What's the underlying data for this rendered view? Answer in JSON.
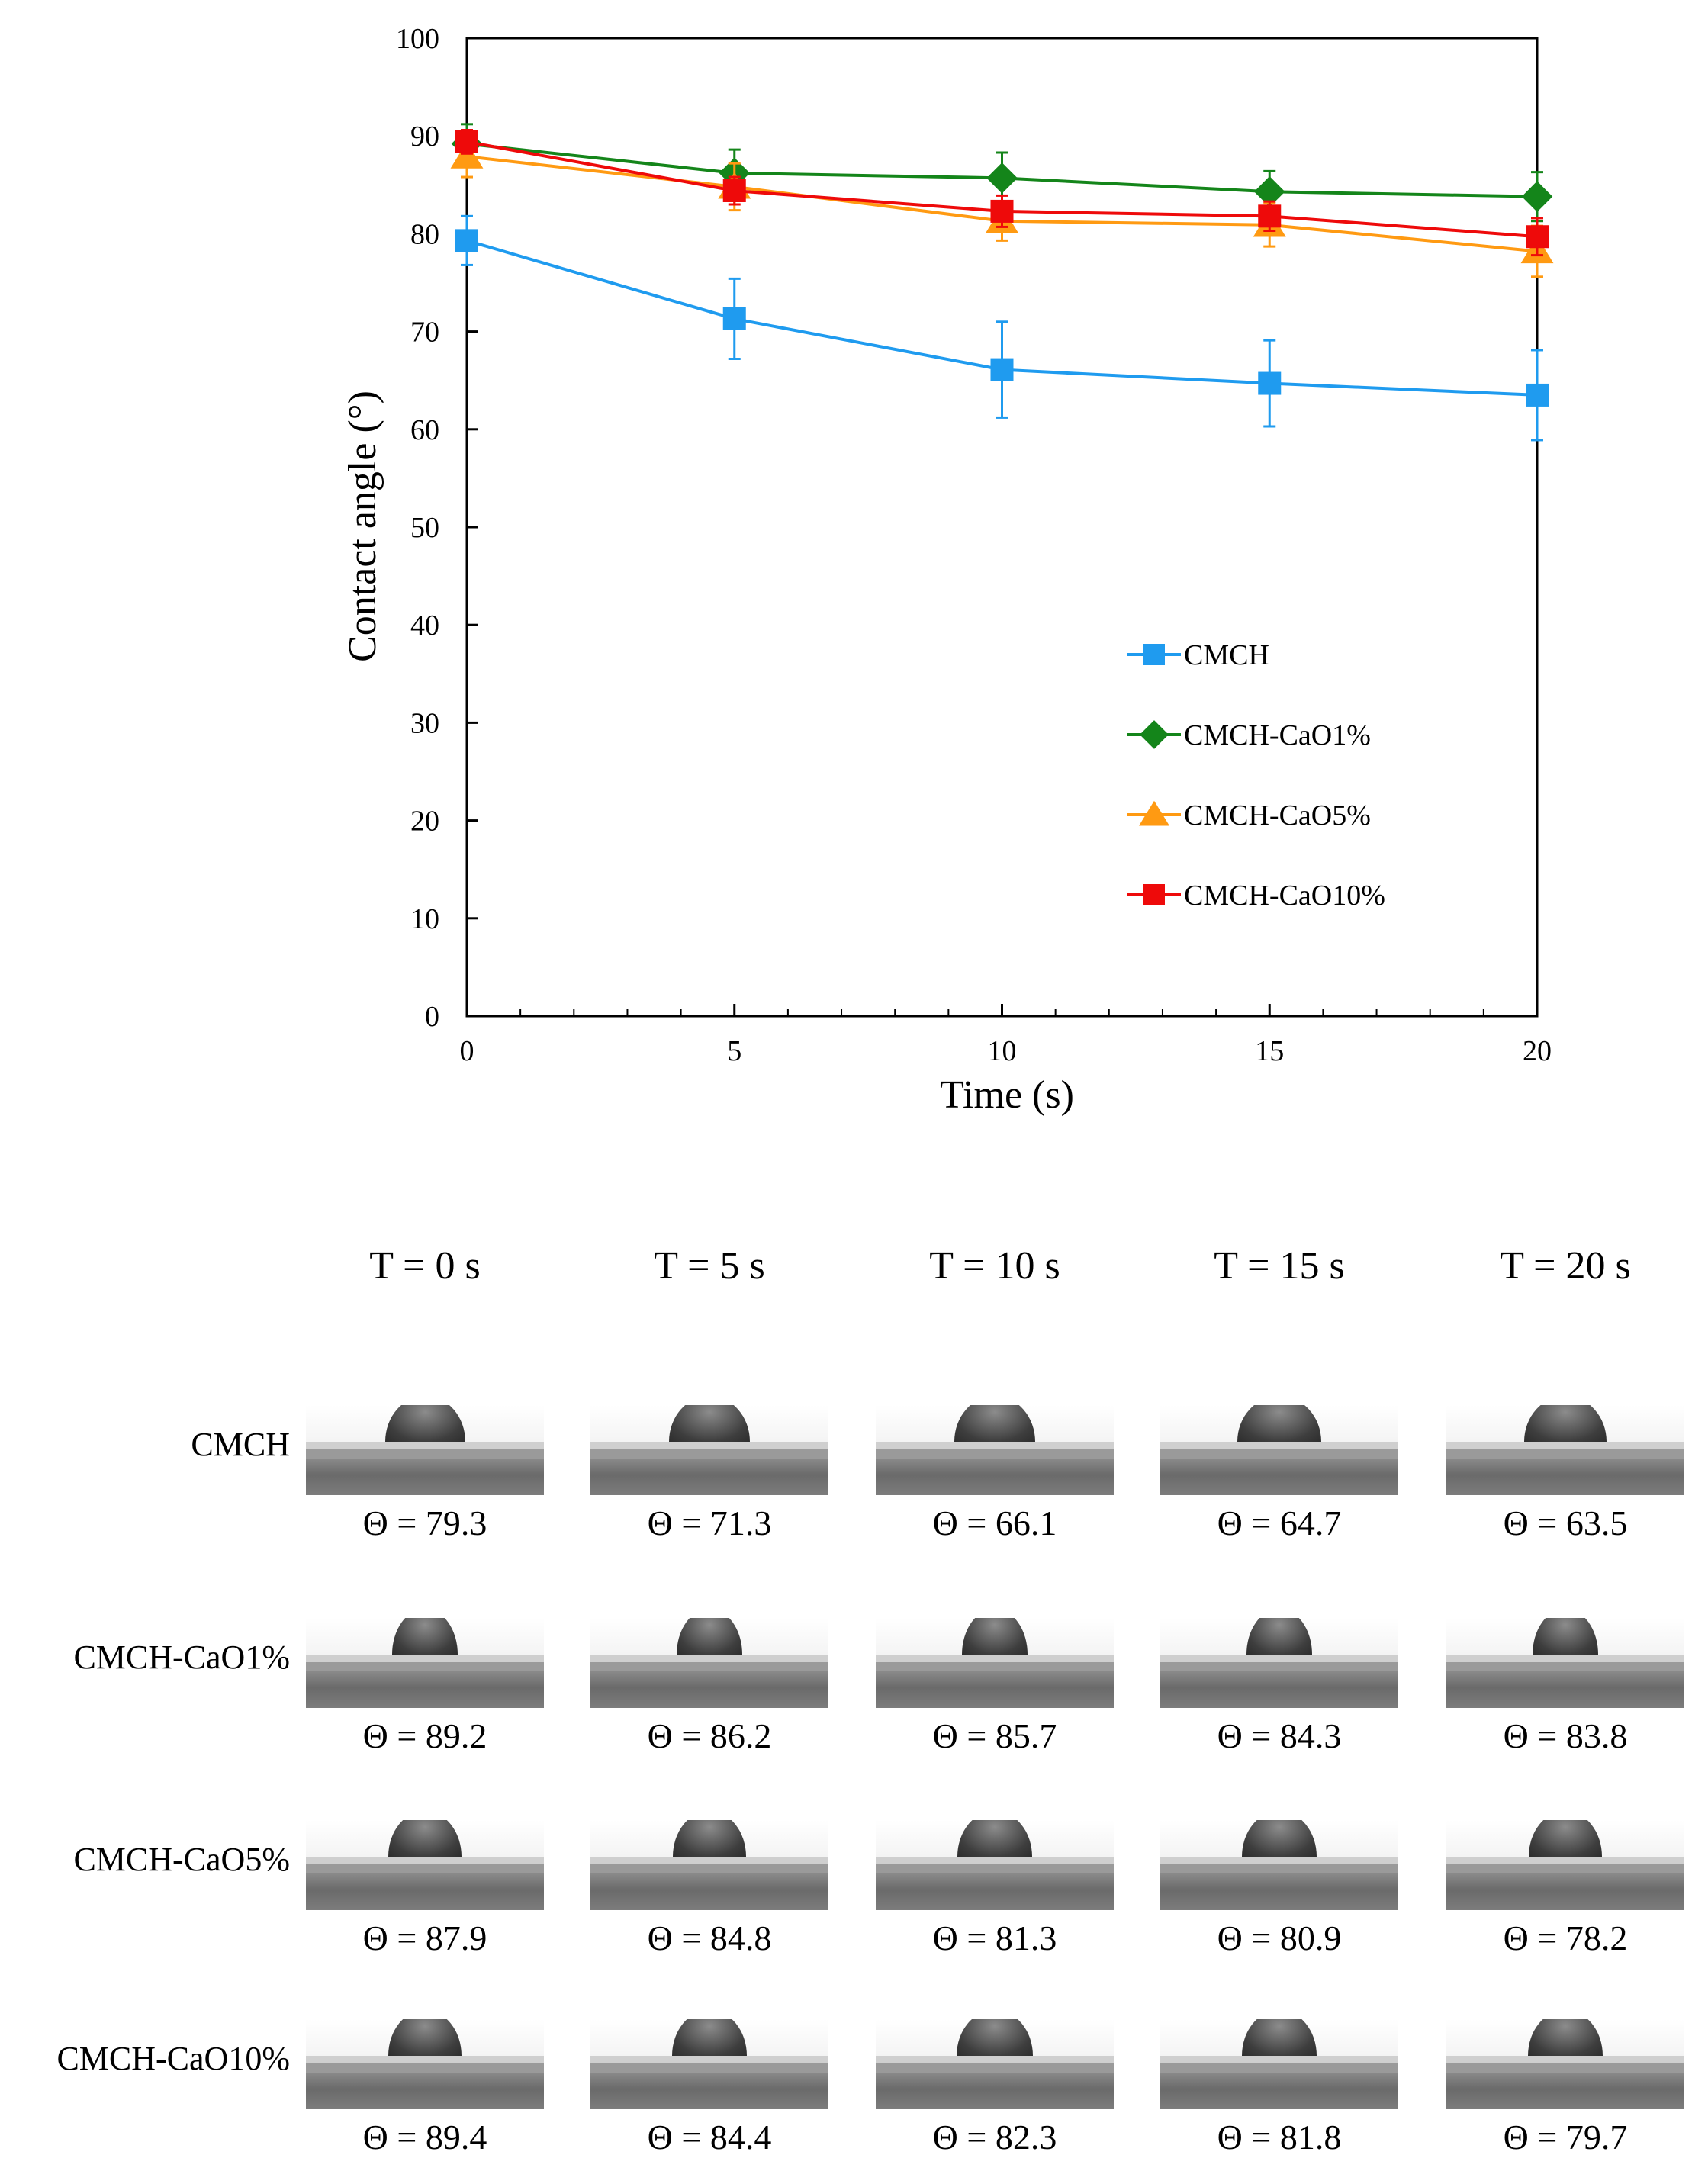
{
  "chart_data": {
    "type": "line",
    "xlabel": "Time (s)",
    "ylabel": "Contact angle (°)",
    "xlim": [
      0,
      20
    ],
    "ylim": [
      0,
      100
    ],
    "x_ticks": [
      0,
      5,
      10,
      15,
      20
    ],
    "y_ticks": [
      0,
      10,
      20,
      30,
      40,
      50,
      60,
      70,
      80,
      90,
      100
    ],
    "x": [
      0,
      5,
      10,
      15,
      20
    ],
    "legend_position": "bottom-right inside plot",
    "series": [
      {
        "name": "CMCH",
        "color": "#1f9bef",
        "marker": "square",
        "values": [
          79.3,
          71.3,
          66.1,
          64.7,
          63.5
        ],
        "errors": [
          2.5,
          4.1,
          4.9,
          4.4,
          4.6
        ]
      },
      {
        "name": "CMCH-CaO1%",
        "color": "#14851a",
        "marker": "diamond",
        "values": [
          89.2,
          86.2,
          85.7,
          84.3,
          83.8
        ],
        "errors": [
          2.0,
          2.4,
          2.6,
          2.1,
          2.5
        ]
      },
      {
        "name": "CMCH-CaO5%",
        "color": "#ff9a12",
        "marker": "triangle",
        "values": [
          87.9,
          84.8,
          81.3,
          80.9,
          78.2
        ],
        "errors": [
          2.1,
          2.4,
          2.0,
          2.2,
          2.6
        ]
      },
      {
        "name": "CMCH-CaO10%",
        "color": "#ee0a0a",
        "marker": "square",
        "values": [
          89.4,
          84.4,
          82.3,
          81.8,
          79.7
        ],
        "errors": [
          1.2,
          1.4,
          1.6,
          1.5,
          1.9
        ]
      }
    ]
  },
  "images": {
    "columns": [
      "T = 0 s",
      "T = 5 s",
      "T = 10 s",
      "T = 15 s",
      "T = 20 s"
    ],
    "rows": [
      {
        "label": "CMCH",
        "thetas": [
          "Θ = 79.3",
          "Θ = 71.3",
          "Θ = 66.1",
          "Θ = 64.7",
          "Θ = 63.5"
        ]
      },
      {
        "label": "CMCH-CaO1%",
        "thetas": [
          "Θ = 89.2",
          "Θ = 86.2",
          "Θ = 85.7",
          "Θ = 84.3",
          "Θ = 83.8"
        ]
      },
      {
        "label": "CMCH-CaO5%",
        "thetas": [
          "Θ = 87.9",
          "Θ = 84.8",
          "Θ = 81.3",
          "Θ = 80.9",
          "Θ = 78.2"
        ]
      },
      {
        "label": "CMCH-CaO10%",
        "thetas": [
          "Θ = 89.4",
          "Θ = 84.4",
          "Θ = 82.3",
          "Θ = 81.8",
          "Θ = 79.7"
        ]
      }
    ]
  }
}
